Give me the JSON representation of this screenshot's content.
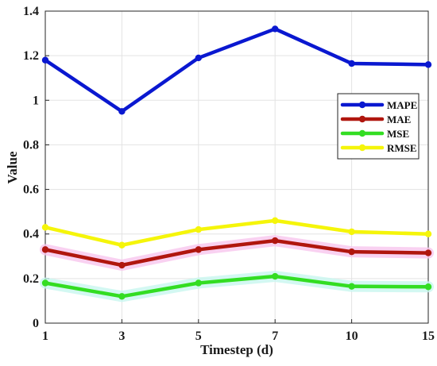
{
  "chart_data": {
    "type": "line",
    "title": "",
    "xlabel": "Timestep (d)",
    "ylabel": "Value",
    "categories": [
      "1",
      "3",
      "5",
      "7",
      "10",
      "15"
    ],
    "ylim": [
      0,
      1.4
    ],
    "yticks": [
      "0",
      "0.2",
      "0.4",
      "0.6",
      "0.8",
      "1",
      "1.2",
      "1.4"
    ],
    "yticks_values": [
      0,
      0.2,
      0.4,
      0.6,
      0.8,
      1.0,
      1.2,
      1.4
    ],
    "grid": true,
    "legend_position": "right",
    "series": [
      {
        "name": "MAPE",
        "color": "#0a18d0",
        "values": [
          1.18,
          0.95,
          1.19,
          1.32,
          1.165,
          1.16
        ]
      },
      {
        "name": "MAE",
        "color": "#b0160e",
        "values": [
          0.33,
          0.26,
          0.33,
          0.37,
          0.32,
          0.315
        ]
      },
      {
        "name": "MSE",
        "color": "#33dd22",
        "values": [
          0.18,
          0.12,
          0.18,
          0.21,
          0.165,
          0.163
        ]
      },
      {
        "name": "RMSE",
        "color": "#f5f50a",
        "values": [
          0.43,
          0.35,
          0.42,
          0.46,
          0.41,
          0.4
        ]
      }
    ]
  }
}
